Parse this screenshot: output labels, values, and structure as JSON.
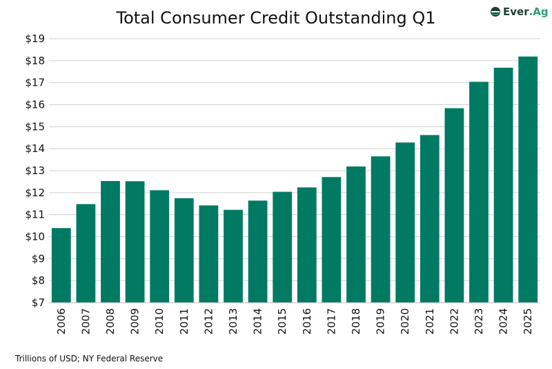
{
  "chart_data": {
    "type": "bar",
    "title": "Total Consumer Credit Outstanding Q1",
    "categories": [
      "2006",
      "2007",
      "2008",
      "2009",
      "2010",
      "2011",
      "2012",
      "2013",
      "2014",
      "2015",
      "2016",
      "2017",
      "2018",
      "2019",
      "2020",
      "2021",
      "2022",
      "2023",
      "2024",
      "2025"
    ],
    "values": [
      10.39,
      11.48,
      12.53,
      12.52,
      12.11,
      11.75,
      11.42,
      11.22,
      11.64,
      12.04,
      12.24,
      12.71,
      13.19,
      13.65,
      14.28,
      14.62,
      15.84,
      17.04,
      17.68,
      18.19
    ],
    "ylim": [
      7,
      19
    ],
    "yticks": [
      "$7",
      "$8",
      "$9",
      "$10",
      "$11",
      "$12",
      "$13",
      "$14",
      "$15",
      "$16",
      "$17",
      "$18",
      "$19"
    ],
    "grid": true,
    "bar_color": "#007a62",
    "note": "Trillions of USD; NY Federal Reserve"
  },
  "logo": {
    "text_dark": "Ever",
    "text_green": ".Ag"
  }
}
